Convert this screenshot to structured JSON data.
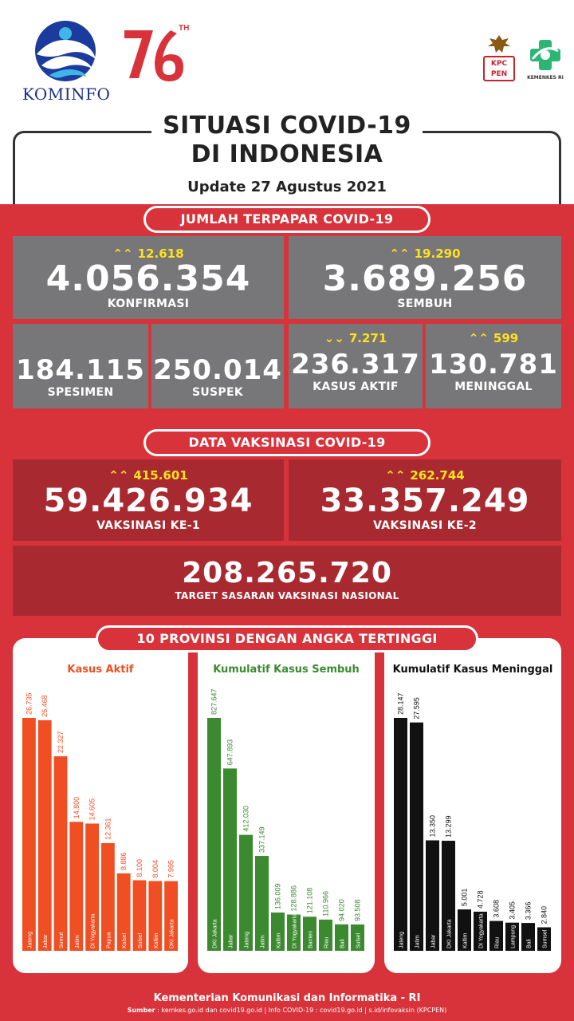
{
  "header": {
    "kominfo_logo_text": "KOMINFO",
    "anniv_sup": "TH",
    "kpcpen_text": "KPC PEN",
    "kemenkes_text": "KEMENKES RI",
    "title_line1": "SITUASI COVID-19",
    "title_line2": "DI INDONESIA",
    "update": "Update 27 Agustus 2021"
  },
  "section1": {
    "title": "JUMLAH TERPAPAR COVID-19",
    "konfirmasi": {
      "delta": "12.618",
      "value": "4.056.354",
      "label": "KONFIRMASI",
      "trend": "up"
    },
    "sembuh": {
      "delta": "19.290",
      "value": "3.689.256",
      "label": "SEMBUH",
      "trend": "up"
    },
    "spesimen": {
      "value": "184.115",
      "label": "SPESIMEN"
    },
    "suspek": {
      "value": "250.014",
      "label": "SUSPEK"
    },
    "kasus_aktif": {
      "delta": "7.271",
      "value": "236.317",
      "label": "KASUS AKTIF",
      "trend": "down"
    },
    "meninggal": {
      "delta": "599",
      "value": "130.781",
      "label": "MENINGGAL",
      "trend": "up"
    }
  },
  "section2": {
    "title": "DATA VAKSINASI COVID-19",
    "vaksin1": {
      "delta": "415.601",
      "value": "59.426.934",
      "label": "VAKSINASI KE-1"
    },
    "vaksin2": {
      "delta": "262.744",
      "value": "33.357.249",
      "label": "VAKSINASI KE-2"
    },
    "target": {
      "value": "208.265.720",
      "label": "TARGET SASARAN VAKSINASI NASIONAL"
    }
  },
  "section3": {
    "title": "10 PROVINSI DENGAN ANGKA TERTINGGI"
  },
  "colors": {
    "red": "#d8333a",
    "dark_red": "#a82a30",
    "grey": "#777779",
    "yellow": "#ffe21b",
    "orange": "#f04e23",
    "green": "#3b8a2f",
    "black": "#111111"
  },
  "chart_data": [
    {
      "type": "bar",
      "title": "Kasus Aktif",
      "color": "#f04e23",
      "categories": [
        "Jateng",
        "Jabar",
        "Sumut",
        "Jatim",
        "DI Yogyakarta",
        "Papua",
        "Kalsel",
        "Sulsel",
        "Kaltim",
        "DKI Jakarta"
      ],
      "labels": [
        "26.735",
        "26.468",
        "22.327",
        "14.800",
        "14.605",
        "12.361",
        "8.886",
        "8.100",
        "8.004",
        "7.995"
      ],
      "values": [
        26735,
        26468,
        22327,
        14800,
        14605,
        12361,
        8886,
        8100,
        8004,
        7995
      ]
    },
    {
      "type": "bar",
      "title": "Kumulatif Kasus Sembuh",
      "color": "#3b8a2f",
      "categories": [
        "DKI Jakarta",
        "Jabar",
        "Jateng",
        "Jatim",
        "Kaltim",
        "DI Yogyakarta",
        "Banten",
        "Riau",
        "Bali",
        "Sulsel"
      ],
      "labels": [
        "827.647",
        "647.893",
        "412.030",
        "337.149",
        "136.009",
        "128.886",
        "121.108",
        "110.966",
        "94.020",
        "93.508"
      ],
      "values": [
        827647,
        647893,
        412030,
        337149,
        136009,
        128886,
        121108,
        110966,
        94020,
        93508
      ]
    },
    {
      "type": "bar",
      "title": "Kumulatif Kasus Meninggal",
      "color": "#111111",
      "categories": [
        "Jateng",
        "Jatim",
        "Jabar",
        "DKI Jakarta",
        "Kaltim",
        "DI Yogyakarta",
        "Riau",
        "Lampung",
        "Bali",
        "Sumsel"
      ],
      "labels": [
        "28.147",
        "27.595",
        "13.350",
        "13.299",
        "5.001",
        "4.728",
        "3.608",
        "3.405",
        "3.366",
        "2.840"
      ],
      "values": [
        28147,
        27595,
        13350,
        13299,
        5001,
        4728,
        3608,
        3405,
        3366,
        2840
      ]
    }
  ],
  "footer": {
    "line1": "Kementerian Komunikasi dan Informatika - RI",
    "line2_label": "Sumber",
    "line2": " : kemkes.go.id dan covid19.go.id | Info COVID-19 : covid19.go.id | s.id/infovaksin (KPCPEN)"
  }
}
